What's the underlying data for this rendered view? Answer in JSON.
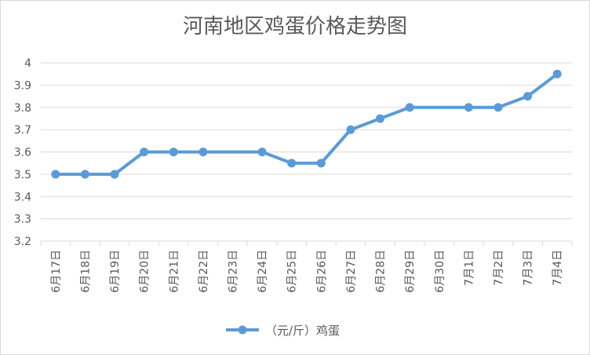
{
  "chart_data": {
    "type": "line",
    "title": "河南地区鸡蛋价格走势图",
    "categories": [
      "6月17日",
      "6月18日",
      "6月19日",
      "6月20日",
      "6月21日",
      "6月22日",
      "6月23日",
      "6月24日",
      "6月25日",
      "6月26日",
      "6月27日",
      "6月28日",
      "6月29日",
      "6月30日",
      "7月1日",
      "7月2日",
      "7月3日",
      "7月4日"
    ],
    "series": [
      {
        "name": "（元/斤）鸡蛋",
        "points": [
          {
            "date": "6月17日",
            "value": 3.5
          },
          {
            "date": "6月18日",
            "value": 3.5
          },
          {
            "date": "6月19日",
            "value": 3.5
          },
          {
            "date": "6月20日",
            "value": 3.6
          },
          {
            "date": "6月21日",
            "value": 3.6
          },
          {
            "date": "6月22日",
            "value": 3.6
          },
          {
            "date": "6月24日",
            "value": 3.6
          },
          {
            "date": "6月25日",
            "value": 3.55
          },
          {
            "date": "6月26日",
            "value": 3.55
          },
          {
            "date": "6月27日",
            "value": 3.7
          },
          {
            "date": "6月28日",
            "value": 3.75
          },
          {
            "date": "6月29日",
            "value": 3.8
          },
          {
            "date": "7月1日",
            "value": 3.8
          },
          {
            "date": "7月2日",
            "value": 3.8
          },
          {
            "date": "7月3日",
            "value": 3.85
          },
          {
            "date": "7月4日",
            "value": 3.95
          }
        ]
      }
    ],
    "yticks": [
      "3.2",
      "3.3",
      "3.4",
      "3.5",
      "3.6",
      "3.7",
      "3.8",
      "3.9",
      "4"
    ],
    "ylim": [
      3.2,
      4.0
    ],
    "grid": true,
    "legend": "bottom",
    "colors": {
      "line": "#5b9bd5",
      "grid": "#d9d9d9",
      "text": "#595959"
    }
  }
}
